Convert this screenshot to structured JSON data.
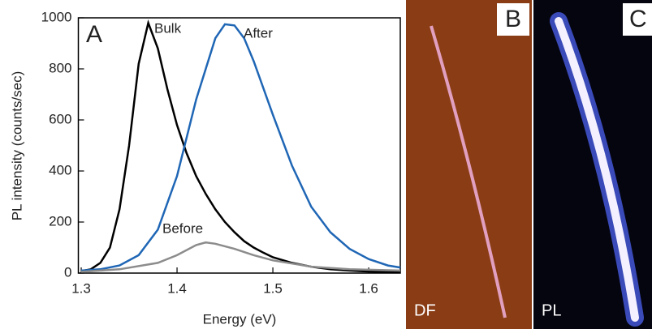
{
  "chart_data": {
    "type": "line",
    "panel_label": "A",
    "x_label": "Energy (eV)",
    "y_label": "PL intensity (counts/sec)",
    "xlim": [
      1.297,
      1.633
    ],
    "xticks": [
      1.3,
      1.4,
      1.5,
      1.6
    ],
    "ylim": [
      0,
      1000
    ],
    "yticks": [
      0,
      200,
      400,
      600,
      800,
      1000
    ],
    "series": [
      {
        "name": "Bulk",
        "color": "#000000",
        "x": [
          1.3,
          1.31,
          1.32,
          1.33,
          1.34,
          1.35,
          1.36,
          1.37,
          1.38,
          1.39,
          1.4,
          1.41,
          1.42,
          1.43,
          1.44,
          1.45,
          1.46,
          1.47,
          1.48,
          1.49,
          1.5,
          1.52,
          1.54,
          1.56,
          1.58,
          1.6,
          1.633
        ],
        "values": [
          8,
          15,
          40,
          100,
          250,
          500,
          820,
          980,
          880,
          720,
          580,
          470,
          380,
          310,
          250,
          200,
          160,
          125,
          100,
          80,
          62,
          40,
          25,
          15,
          10,
          6,
          4
        ]
      },
      {
        "name": "After",
        "color": "#1f66b5",
        "x": [
          1.3,
          1.32,
          1.34,
          1.36,
          1.38,
          1.4,
          1.42,
          1.44,
          1.45,
          1.46,
          1.47,
          1.48,
          1.5,
          1.52,
          1.54,
          1.56,
          1.58,
          1.6,
          1.62,
          1.633
        ],
        "values": [
          10,
          15,
          30,
          70,
          170,
          380,
          680,
          920,
          975,
          970,
          920,
          830,
          620,
          420,
          260,
          160,
          95,
          55,
          30,
          22
        ]
      },
      {
        "name": "Before",
        "color": "#8c8c8c",
        "x": [
          1.3,
          1.34,
          1.38,
          1.4,
          1.42,
          1.43,
          1.44,
          1.46,
          1.48,
          1.5,
          1.54,
          1.58,
          1.633
        ],
        "values": [
          5,
          15,
          40,
          70,
          110,
          120,
          115,
          95,
          70,
          50,
          25,
          15,
          10
        ]
      }
    ]
  },
  "images": [
    {
      "label": "B",
      "caption": "DF"
    },
    {
      "label": "C",
      "caption": "PL"
    }
  ]
}
